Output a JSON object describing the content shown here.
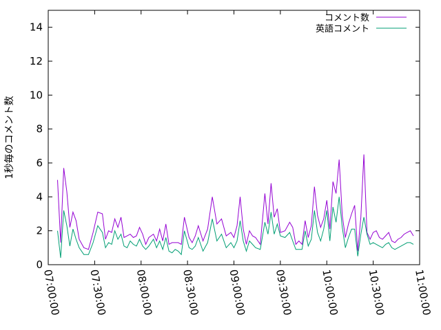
{
  "chart_data": {
    "type": "line",
    "title": "",
    "xlabel": "",
    "ylabel": "1秒毎のコメント数",
    "x_start": "07:00:00",
    "x_end": "11:00:00",
    "x_ticks": [
      "07:00:00",
      "07:30:00",
      "08:00:00",
      "08:30:00",
      "09:00:00",
      "09:30:00",
      "10:00:00",
      "10:30:00",
      "11:00:00"
    ],
    "ylim": [
      0,
      15
    ],
    "y_ticks": [
      "0",
      "2",
      "4",
      "6",
      "8",
      "10",
      "12",
      "14"
    ],
    "legend_position": "top-right",
    "grid": false,
    "x_times": [
      "07:06:00",
      "07:08:00",
      "07:10:00",
      "07:12:00",
      "07:14:00",
      "07:16:00",
      "07:18:00",
      "07:20:00",
      "07:23:00",
      "07:26:00",
      "07:29:00",
      "07:32:00",
      "07:35:00",
      "07:37:00",
      "07:39:00",
      "07:41:00",
      "07:43:00",
      "07:45:00",
      "07:47:00",
      "07:49:00",
      "07:51:00",
      "07:53:00",
      "07:55:00",
      "07:57:00",
      "07:59:00",
      "08:01:00",
      "08:03:00",
      "08:05:00",
      "08:08:00",
      "08:10:00",
      "08:12:00",
      "08:14:00",
      "08:16:00",
      "08:18:00",
      "08:20:00",
      "08:22:00",
      "08:24:00",
      "08:26:00",
      "08:28:00",
      "08:31:00",
      "08:33:00",
      "08:35:00",
      "08:37:00",
      "08:40:00",
      "08:43:00",
      "08:46:00",
      "08:49:00",
      "08:52:00",
      "08:55:00",
      "08:58:00",
      "09:00:00",
      "09:02:00",
      "09:04:00",
      "09:06:00",
      "09:08:00",
      "09:10:00",
      "09:12:00",
      "09:14:00",
      "09:17:00",
      "09:20:00",
      "09:22:00",
      "09:24:00",
      "09:26:00",
      "09:28:00",
      "09:30:00",
      "09:33:00",
      "09:36:00",
      "09:38:00",
      "09:40:00",
      "09:42:00",
      "09:44:00",
      "09:46:00",
      "09:48:00",
      "09:50:00",
      "09:52:00",
      "09:54:00",
      "09:56:00",
      "09:58:00",
      "10:00:00",
      "10:02:00",
      "10:04:00",
      "10:06:00",
      "10:08:00",
      "10:10:00",
      "10:12:00",
      "10:14:00",
      "10:16:00",
      "10:18:00",
      "10:20:00",
      "10:22:00",
      "10:24:00",
      "10:26:00",
      "10:28:00",
      "10:30:00",
      "10:32:00",
      "10:34:00",
      "10:36:00",
      "10:38:00",
      "10:40:00",
      "10:42:00",
      "10:44:00",
      "10:46:00",
      "10:48:00",
      "10:50:00",
      "10:52:00",
      "10:54:00",
      "10:56:00"
    ],
    "series": [
      {
        "name": "コメント数",
        "color": "#9400d3",
        "values": [
          5.0,
          1.3,
          5.7,
          4.3,
          2.2,
          3.1,
          2.6,
          1.5,
          1.0,
          0.9,
          1.9,
          3.1,
          3.0,
          1.5,
          2.0,
          1.9,
          2.7,
          2.2,
          2.8,
          1.6,
          1.7,
          1.8,
          1.6,
          1.7,
          2.2,
          1.8,
          1.2,
          1.6,
          1.8,
          1.4,
          2.1,
          1.4,
          2.4,
          1.2,
          1.3,
          1.3,
          1.3,
          1.2,
          2.8,
          1.6,
          1.3,
          1.7,
          2.3,
          1.4,
          2.1,
          4.0,
          2.4,
          2.7,
          1.7,
          1.9,
          1.6,
          2.3,
          4.0,
          2.1,
          1.2,
          2.0,
          1.7,
          1.6,
          1.2,
          4.2,
          2.4,
          4.8,
          2.8,
          3.3,
          1.9,
          2.0,
          2.5,
          2.2,
          1.2,
          1.4,
          1.2,
          2.6,
          1.6,
          2.3,
          4.6,
          2.9,
          2.2,
          2.7,
          3.8,
          2.1,
          4.9,
          4.2,
          6.2,
          2.9,
          1.6,
          2.4,
          3.0,
          3.5,
          0.8,
          2.8,
          6.5,
          1.9,
          1.5,
          1.9,
          2.0,
          1.6,
          1.5,
          1.7,
          1.9,
          1.4,
          1.3,
          1.5,
          1.6,
          1.8,
          1.9,
          2.0,
          1.7
        ]
      },
      {
        "name": "英語コメント",
        "color": "#009e73",
        "values": [
          2.0,
          0.4,
          3.2,
          2.3,
          1.1,
          2.1,
          1.5,
          1.0,
          0.6,
          0.6,
          1.3,
          2.3,
          1.9,
          1.0,
          1.3,
          1.2,
          2.0,
          1.5,
          1.8,
          1.1,
          1.0,
          1.4,
          1.2,
          1.1,
          1.5,
          1.1,
          0.9,
          1.1,
          1.5,
          1.0,
          1.4,
          0.9,
          1.6,
          0.8,
          0.7,
          0.9,
          0.8,
          0.6,
          2.0,
          1.0,
          0.9,
          1.1,
          1.6,
          0.8,
          1.3,
          2.7,
          1.4,
          1.8,
          1.0,
          1.3,
          1.0,
          1.4,
          2.6,
          1.4,
          0.8,
          1.4,
          1.2,
          1.0,
          0.9,
          2.5,
          1.8,
          3.1,
          1.8,
          2.4,
          1.7,
          1.6,
          1.9,
          1.4,
          0.9,
          0.9,
          0.9,
          2.0,
          1.1,
          1.5,
          3.2,
          1.9,
          1.4,
          2.1,
          3.2,
          1.4,
          3.4,
          2.5,
          4.0,
          2.2,
          1.0,
          1.6,
          2.1,
          2.1,
          0.5,
          1.8,
          2.8,
          1.8,
          1.2,
          1.3,
          1.2,
          1.1,
          1.0,
          1.2,
          1.3,
          1.0,
          0.9,
          1.0,
          1.1,
          1.2,
          1.3,
          1.3,
          1.2
        ]
      }
    ]
  }
}
